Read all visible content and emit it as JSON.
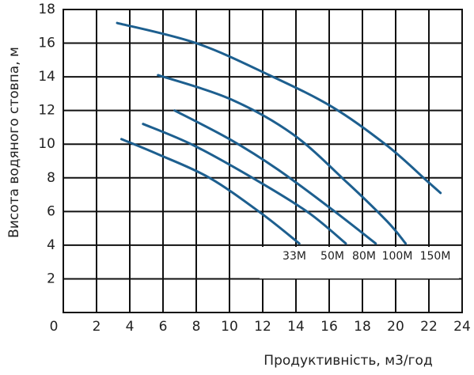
{
  "chart_data": {
    "type": "line",
    "x_label": "Продуктивність, м3/год",
    "y_label": "Висота водяного стовпа, м",
    "xlim": [
      0,
      24
    ],
    "ylim": [
      0,
      18
    ],
    "xticks": [
      0,
      2,
      4,
      6,
      8,
      10,
      12,
      14,
      16,
      18,
      20,
      22,
      24
    ],
    "yticks": [
      2,
      4,
      6,
      8,
      10,
      12,
      14,
      16,
      18
    ],
    "grid": true,
    "series": [
      {
        "name": "33M",
        "color": "#1d5f8f",
        "x": [
          3.5,
          5.7,
          8.8,
          11.9,
          14.2
        ],
        "values": [
          10.3,
          9.4,
          8.0,
          5.9,
          4.1
        ]
      },
      {
        "name": "50M",
        "color": "#1d5f8f",
        "x": [
          4.8,
          7.9,
          11.9,
          14.8,
          17.0
        ],
        "values": [
          11.2,
          9.9,
          7.7,
          5.9,
          4.1
        ]
      },
      {
        "name": "80M",
        "color": "#1d5f8f",
        "x": [
          6.7,
          10.0,
          12.9,
          16.2,
          18.8
        ],
        "values": [
          12.0,
          10.3,
          8.5,
          6.1,
          4.1
        ]
      },
      {
        "name": "100M",
        "color": "#1d5f8f",
        "x": [
          5.7,
          10.0,
          13.8,
          17.1,
          19.5,
          20.6
        ],
        "values": [
          14.1,
          12.7,
          10.6,
          7.7,
          5.4,
          4.1
        ]
      },
      {
        "name": "150M",
        "color": "#1d5f8f",
        "x": [
          3.24,
          8.0,
          12.4,
          16.2,
          19.5,
          21.9,
          22.7
        ],
        "values": [
          17.2,
          16.0,
          14.1,
          12.2,
          9.9,
          7.8,
          7.1
        ]
      }
    ]
  }
}
